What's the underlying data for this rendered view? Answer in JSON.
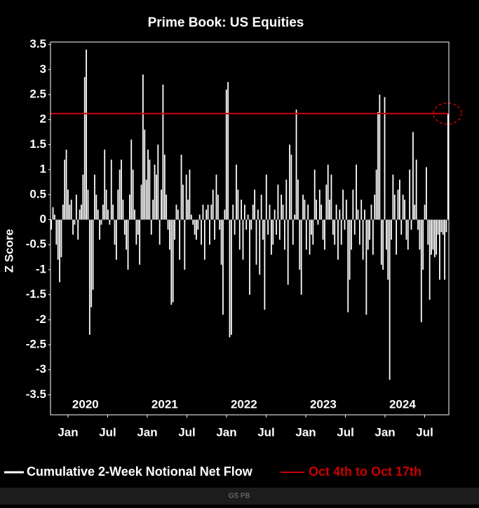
{
  "chart_data": {
    "type": "bar",
    "title": "Prime Book: US Equities",
    "y_label": "Z Score",
    "footer": "GS PB",
    "series": [
      {
        "name": "Cumulative 2-Week Notional Net Flow",
        "color": "#ffffff",
        "values": [
          -0.2,
          0.25,
          0.1,
          -0.5,
          -0.8,
          -1.25,
          -0.75,
          0.3,
          1.2,
          1.4,
          0.6,
          0.3,
          0.4,
          -0.3,
          -0.1,
          0.5,
          -0.4,
          0.2,
          0.3,
          0.9,
          2.85,
          3.4,
          0.6,
          -2.3,
          -1.75,
          -1.4,
          0.9,
          0.5,
          0.2,
          -0.4,
          -0.1,
          0.3,
          1.4,
          0.6,
          0.2,
          -0.1,
          1.2,
          0.3,
          -0.5,
          -0.8,
          0.6,
          1.0,
          1.2,
          0.4,
          -0.3,
          -0.6,
          -1.0,
          0.5,
          1.6,
          1.0,
          0.2,
          -0.5,
          -0.3,
          -0.9,
          0.7,
          2.9,
          1.8,
          0.8,
          1.4,
          1.2,
          -0.3,
          0.4,
          1.1,
          0.9,
          1.5,
          -0.5,
          0.6,
          2.7,
          1.3,
          0.5,
          -0.2,
          -0.6,
          -1.7,
          -1.65,
          -0.4,
          0.3,
          0.2,
          -0.8,
          1.3,
          0.7,
          -1.0,
          0.9,
          0.4,
          1.0,
          0.1,
          -0.1,
          -0.3,
          -0.4,
          -0.2,
          0.1,
          -0.5,
          0.3,
          -0.8,
          0.2,
          0.3,
          -0.5,
          0.3,
          0.6,
          -0.4,
          0.9,
          0.5,
          -0.2,
          -0.9,
          -1.9,
          0.2,
          2.6,
          2.75,
          -2.35,
          -2.3,
          0.3,
          -0.3,
          1.1,
          0.6,
          -0.6,
          0.4,
          -0.8,
          0.3,
          -0.2,
          0.1,
          -1.5,
          -0.2,
          0.3,
          0.6,
          -0.9,
          0.2,
          -1.1,
          0.5,
          -0.4,
          -1.8,
          0.9,
          -0.3,
          0.3,
          -0.7,
          -0.5,
          0.2,
          -0.3,
          0.7,
          -0.4,
          0.5,
          0.3,
          -0.6,
          0.8,
          -1.3,
          1.5,
          1.3,
          -0.5,
          0.1,
          2.2,
          0.8,
          -1.0,
          -1.5,
          0.5,
          0.4,
          -0.6,
          0.3,
          -0.7,
          -0.3,
          -0.5,
          1.0,
          0.4,
          -0.1,
          0.6,
          0.3,
          -0.4,
          -0.6,
          0.7,
          1.1,
          0.4,
          0.9,
          -0.3,
          -0.5,
          0.3,
          -0.8,
          0.2,
          -0.5,
          0.6,
          -0.2,
          0.4,
          -1.85,
          -1.2,
          -0.6,
          0.6,
          -0.3,
          1.1,
          0.2,
          -0.5,
          0.4,
          -0.8,
          0.2,
          -1.9,
          -0.6,
          -0.4,
          0.3,
          -0.7,
          0.5,
          1.0,
          2.15,
          2.5,
          -0.9,
          -1.0,
          2.45,
          -0.6,
          -1.2,
          -3.2,
          -0.4,
          0.9,
          0.5,
          -0.7,
          0.6,
          0.8,
          -0.3,
          0.5,
          0.4,
          -0.4,
          -0.6,
          1.0,
          -0.2,
          1.75,
          0.3,
          1.2,
          -0.2,
          -0.6,
          -2.05,
          -1.0,
          0.3,
          1.05,
          -0.5,
          -1.6,
          -0.7,
          -0.6,
          -0.75,
          -0.7,
          -0.3,
          -1.2,
          -0.25,
          -0.3,
          -1.2,
          -0.25,
          2.12
        ]
      }
    ],
    "reference_line": {
      "name": "Oct 4th to Oct 17th",
      "value": 2.12,
      "color": "#cc0000"
    },
    "ylim": [
      -3.9,
      3.55
    ],
    "yticks": [
      3.5,
      3,
      2.5,
      2,
      1.5,
      1,
      0.5,
      0,
      -0.5,
      -1,
      -1.5,
      -2,
      -2.5,
      -3,
      -3.5
    ],
    "xlim": [
      2019.779,
      2024.805
    ],
    "xticks": [
      {
        "value": 2020,
        "label": "Jan"
      },
      {
        "value": 2020.5,
        "label": "Jul"
      },
      {
        "value": 2021,
        "label": "Jan"
      },
      {
        "value": 2021.5,
        "label": "Jul"
      },
      {
        "value": 2022,
        "label": "Jan"
      },
      {
        "value": 2022.5,
        "label": "Jul"
      },
      {
        "value": 2023,
        "label": "Jan"
      },
      {
        "value": 2023.5,
        "label": "Jul"
      },
      {
        "value": 2024,
        "label": "Jan"
      },
      {
        "value": 2024.5,
        "label": "Jul"
      }
    ],
    "year_labels": [
      {
        "value": 2020.22,
        "label": "2020"
      },
      {
        "value": 2021.22,
        "label": "2021"
      },
      {
        "value": 2022.22,
        "label": "2022"
      },
      {
        "value": 2023.22,
        "label": "2023"
      },
      {
        "value": 2024.22,
        "label": "2024"
      }
    ]
  }
}
